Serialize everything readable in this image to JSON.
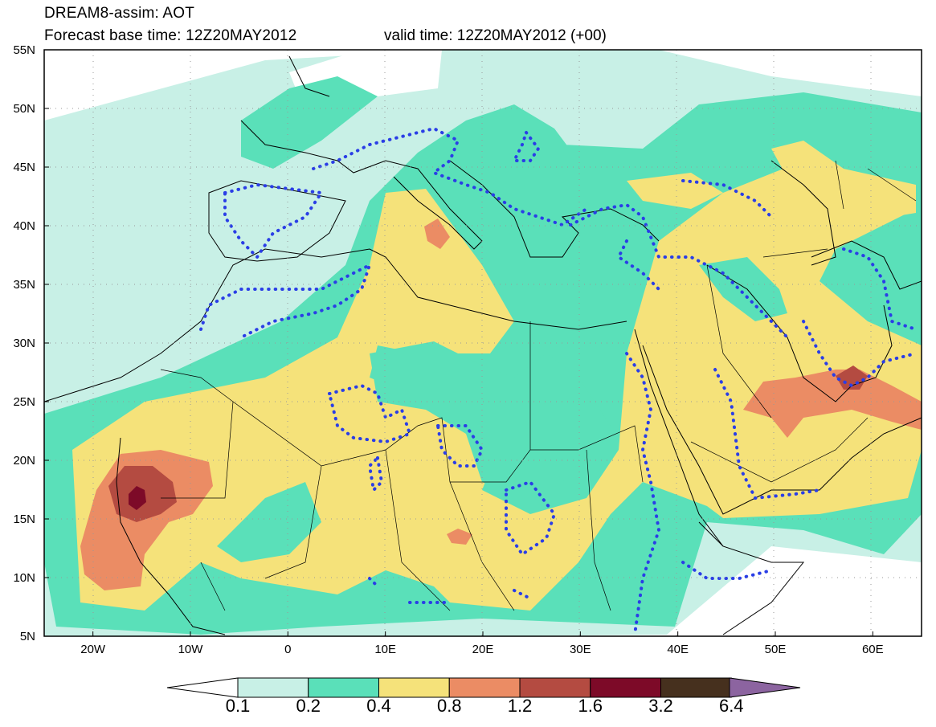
{
  "title": {
    "line1": "DREAM8-assim: AOT",
    "line2_base": "Forecast base time: 12Z20MAY2012",
    "line2_valid": "valid time: 12Z20MAY2012 (+00)"
  },
  "map": {
    "lon_range": [
      -25,
      65
    ],
    "lat_range": [
      5,
      55
    ],
    "lat_ticks": [
      "55N",
      "50N",
      "45N",
      "40N",
      "35N",
      "30N",
      "25N",
      "20N",
      "15N",
      "10N",
      "5N"
    ],
    "lon_ticks": [
      "20W",
      "10W",
      "0",
      "10E",
      "20E",
      "30E",
      "40E",
      "50E",
      "60E"
    ],
    "gridlines": "dotted"
  },
  "colorbar": {
    "labels": [
      "0.1",
      "0.2",
      "0.4",
      "0.8",
      "1.2",
      "1.6",
      "3.2",
      "6.4"
    ],
    "colors": [
      "#ffffff",
      "#c8f0e6",
      "#5ae0b9",
      "#f5e27a",
      "#eb8c64",
      "#b44b41",
      "#7d0a28",
      "#46301e",
      "#8c64a0"
    ]
  }
}
